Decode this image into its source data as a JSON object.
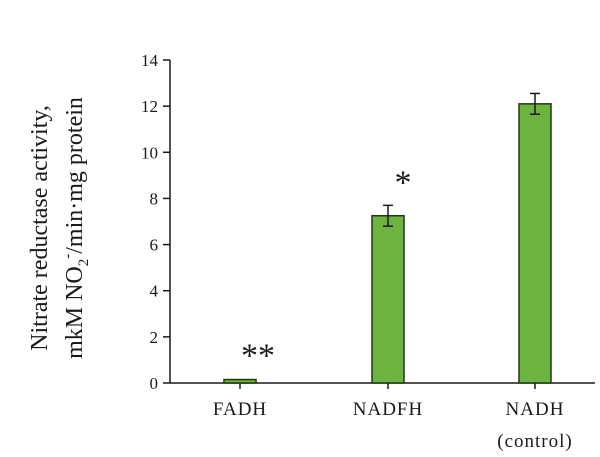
{
  "chart_data": {
    "type": "bar",
    "categories": [
      "FADH",
      "NADFH",
      "NADH"
    ],
    "category_sublabels": [
      "",
      "",
      "(control)"
    ],
    "values": [
      0.15,
      7.25,
      12.1
    ],
    "errors": [
      0.05,
      0.45,
      0.45
    ],
    "significance": [
      "**",
      "*",
      ""
    ],
    "ylim": [
      0,
      14
    ],
    "yticks": [
      0,
      2,
      4,
      6,
      8,
      10,
      12,
      14
    ],
    "ylabel_line1": "Nitrate reductase activity,",
    "ylabel_line2_prefix": "mkM NO",
    "ylabel_line2_sub": "2",
    "ylabel_line2_sup": "-",
    "ylabel_line2_suffix": "/min·mg protein",
    "xlabel": "",
    "title": "",
    "grid": false,
    "bar_color": "#6db33f",
    "bar_edge_color": "#1f3a12"
  }
}
